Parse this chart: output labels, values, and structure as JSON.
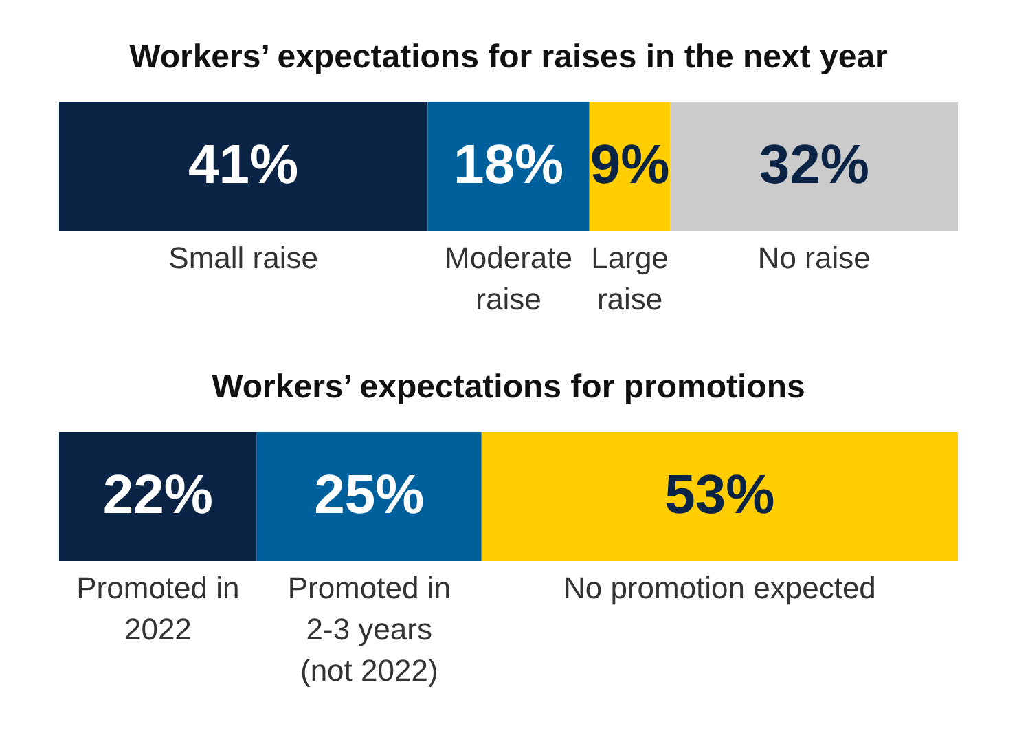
{
  "chart_data": [
    {
      "type": "bar",
      "title": "Workers’ expectations for raises in the next year",
      "orientation": "horizontal",
      "stacked": true,
      "tick_labels": false,
      "categories": [
        null
      ],
      "series": [
        {
          "name": "Small raise",
          "color": "#0b2345",
          "values": [
            41
          ],
          "value_labels": [
            "41%"
          ]
        },
        {
          "name": "Moderate raise",
          "color": "#00609c",
          "values": [
            18
          ],
          "value_labels": [
            "18%"
          ]
        },
        {
          "name": "Large raise",
          "color": "#ffcd00",
          "values": [
            9
          ],
          "value_labels": [
            "9%"
          ]
        },
        {
          "name": "No raise",
          "color": "#cbcbcb",
          "values": [
            32
          ],
          "value_labels": [
            "32%"
          ]
        }
      ]
    },
    {
      "type": "bar",
      "title": "Workers’ expectations for promotions",
      "orientation": "horizontal",
      "stacked": true,
      "tick_labels": false,
      "categories": [
        null
      ],
      "series": [
        {
          "name": "Promoted in 2022",
          "color": "#0b2345",
          "values": [
            22
          ],
          "value_labels": [
            "22%"
          ]
        },
        {
          "name": "Promoted in 2-3 years (not 2022)",
          "color": "#00609c",
          "values": [
            25
          ],
          "value_labels": [
            "25%"
          ]
        },
        {
          "name": "No promotion expected",
          "color": "#ffcd00",
          "values": [
            53
          ],
          "value_labels": [
            "53%"
          ]
        }
      ]
    }
  ]
}
